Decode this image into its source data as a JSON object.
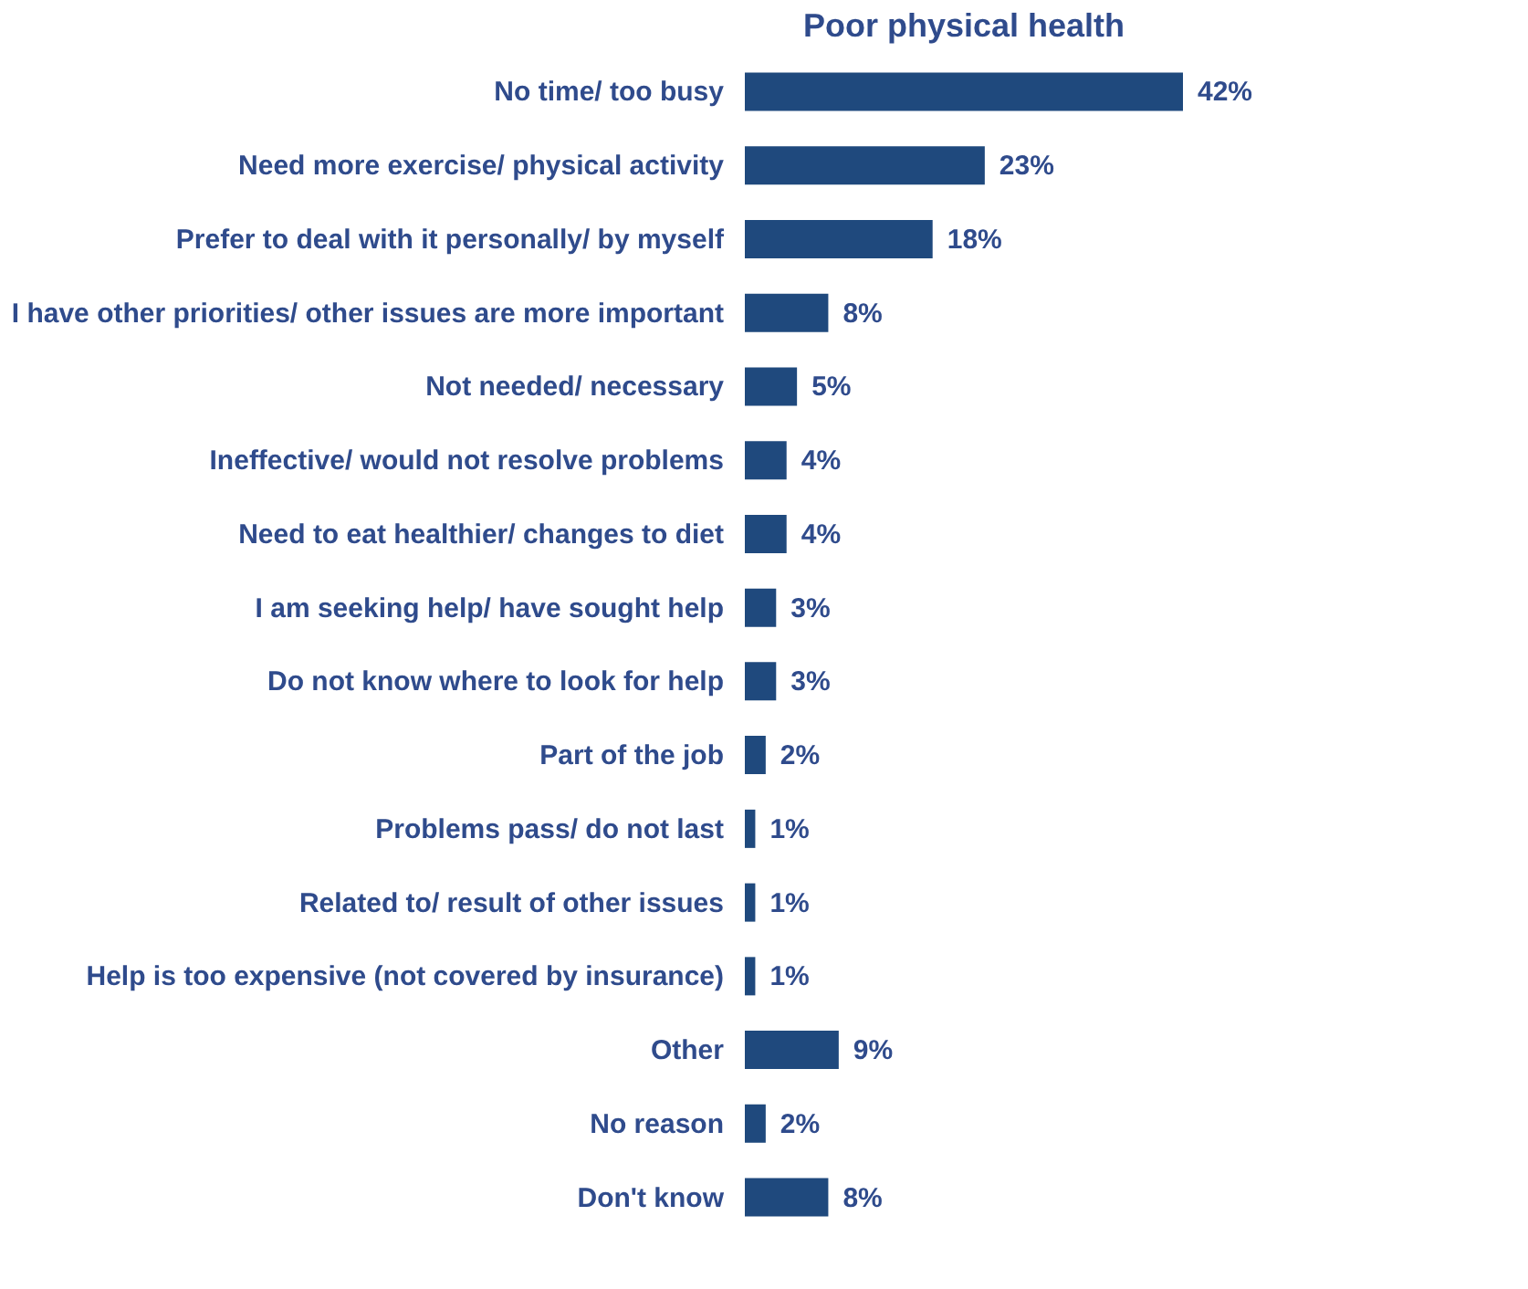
{
  "chart_data": {
    "type": "bar",
    "orientation": "horizontal",
    "title": "Poor physical health",
    "categories": [
      "No time/ too busy",
      "Need more exercise/ physical activity",
      "Prefer to deal with it personally/ by myself",
      "I have other priorities/ other issues are more important",
      "Not needed/ necessary",
      "Ineffective/ would not resolve problems",
      "Need to eat healthier/ changes to diet",
      "I am seeking help/ have sought help",
      "Do not know where to look for help",
      "Part of the job",
      "Problems pass/ do not last",
      "Related to/ result of other issues",
      "Help is too expensive (not covered by insurance)",
      "Other",
      "No reason",
      "Don't know"
    ],
    "values": [
      42,
      23,
      18,
      8,
      5,
      4,
      4,
      3,
      3,
      2,
      1,
      1,
      1,
      9,
      2,
      8
    ],
    "value_labels": [
      "42%",
      "23%",
      "18%",
      "8%",
      "5%",
      "4%",
      "4%",
      "3%",
      "3%",
      "2%",
      "1%",
      "1%",
      "1%",
      "9%",
      "2%",
      "8%"
    ],
    "color": "#1f497d",
    "tick_labels": "y",
    "grid": false
  }
}
